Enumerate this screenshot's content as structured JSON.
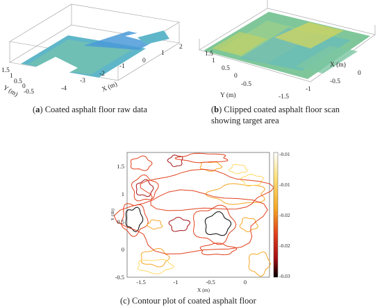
{
  "panel_a": {
    "caption_label": "a",
    "caption_text": "Coated asphalt floor raw data",
    "x_axis_label": "X (m)",
    "y_axis_label": "Y (m)",
    "x_ticks": [
      "-4",
      "-3",
      "-2",
      "-1",
      "0",
      "1",
      "2"
    ],
    "y_ticks": [
      "1.5",
      "1",
      "0.5",
      "0",
      "-0.5"
    ]
  },
  "panel_b": {
    "caption_label": "b",
    "caption_text_line1": "Clipped coated asphalt floor scan",
    "caption_text_line2": "showing target area",
    "x_axis_label": "X (m)",
    "y_axis_label": "Y (m)",
    "x_ticks": [
      "-1.5",
      "-1",
      "-0.5",
      "0"
    ],
    "y_ticks": [
      "1.5",
      "1",
      "0.5",
      "0",
      "-0.5"
    ]
  },
  "panel_c": {
    "caption_label": "(c)",
    "caption_text": "Contour plot of coated asphalt floor"
  },
  "chart_data": [
    {
      "type": "scatter",
      "title": "",
      "xlabel": "X (m)",
      "ylabel": "Y (m)",
      "x_ticks": [
        -4,
        -3,
        -2,
        -1,
        0,
        1,
        2
      ],
      "y_ticks": [
        1.5,
        1,
        0.5,
        0,
        -0.5
      ],
      "xlim": [
        -4.5,
        2.5
      ],
      "ylim": [
        -0.7,
        1.7
      ]
    },
    {
      "type": "scatter",
      "title": "",
      "xlabel": "X (m)",
      "ylabel": "Y (m)",
      "x_ticks": [
        -1.5,
        -1,
        -0.5,
        0
      ],
      "y_ticks": [
        1.5,
        1,
        0.5,
        0,
        -0.5
      ],
      "xlim": [
        -1.7,
        0.35
      ],
      "ylim": [
        -0.5,
        1.75
      ]
    },
    {
      "type": "heatmap",
      "title": "",
      "xlabel": "X (m)",
      "ylabel": "Y (m)",
      "x_ticks": [
        -1.5,
        -1,
        -0.5,
        0
      ],
      "x_tick_labels": [
        "-1.5",
        "-1",
        "-0.5",
        "0"
      ],
      "y_ticks": [
        -0.5,
        0,
        0.5,
        1,
        1.5
      ],
      "y_tick_labels": [
        "-0.5",
        "0",
        "0.5",
        "1",
        "1.5"
      ],
      "xlim": [
        -1.7,
        0.35
      ],
      "ylim": [
        -0.5,
        1.75
      ],
      "colorbar_ticks": [
        "-0.01",
        "-0.01",
        "-0.02",
        "-0.02",
        "-0.03"
      ],
      "colormap": [
        "#ffffff",
        "#ffd966",
        "#f5a623",
        "#e2401c",
        "#a30d12",
        "#000000"
      ]
    }
  ]
}
